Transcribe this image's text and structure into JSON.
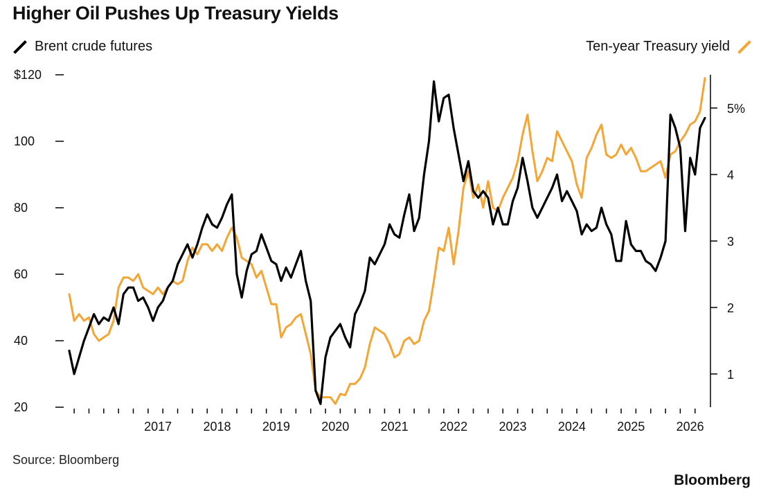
{
  "page": {
    "title": "Higher Oil Pushes Up Treasury Yields",
    "source": "Source: Bloomberg",
    "brand": "Bloomberg"
  },
  "chart_data": {
    "type": "line",
    "title": "Higher Oil Pushes Up Treasury Yields",
    "grid": false,
    "legend_placement": "top",
    "x_ticks": [
      "2017",
      "2018",
      "2019",
      "2020",
      "2021",
      "2022",
      "2023",
      "2024",
      "2025",
      "2026"
    ],
    "x_range": [
      "2016-01",
      "2026-10"
    ],
    "y_left": {
      "ticks": [
        "$120",
        "100",
        "80",
        "60",
        "40",
        "20"
      ],
      "tick_values": [
        120,
        100,
        80,
        60,
        40,
        20
      ],
      "range": [
        20,
        120
      ]
    },
    "y_right": {
      "ticks": [
        "5%",
        "4",
        "3",
        "2",
        "1"
      ],
      "tick_values": [
        5,
        4,
        3,
        2,
        1
      ],
      "range": [
        0.5,
        5.5
      ]
    },
    "series": [
      {
        "name": "Brent crude futures",
        "axis": "left",
        "color": "#000000",
        "points": [
          [
            "2016-01",
            37
          ],
          [
            "2016-02",
            30
          ],
          [
            "2016-03",
            35
          ],
          [
            "2016-04",
            40
          ],
          [
            "2016-05",
            44
          ],
          [
            "2016-06",
            48
          ],
          [
            "2016-07",
            45
          ],
          [
            "2016-08",
            47
          ],
          [
            "2016-09",
            46
          ],
          [
            "2016-10",
            50
          ],
          [
            "2016-11",
            45
          ],
          [
            "2016-12",
            54
          ],
          [
            "2017-01",
            56
          ],
          [
            "2017-02",
            56
          ],
          [
            "2017-03",
            52
          ],
          [
            "2017-04",
            53
          ],
          [
            "2017-05",
            50
          ],
          [
            "2017-06",
            46
          ],
          [
            "2017-07",
            50
          ],
          [
            "2017-08",
            52
          ],
          [
            "2017-09",
            56
          ],
          [
            "2017-10",
            58
          ],
          [
            "2017-11",
            63
          ],
          [
            "2017-12",
            66
          ],
          [
            "2018-01",
            69
          ],
          [
            "2018-02",
            65
          ],
          [
            "2018-03",
            69
          ],
          [
            "2018-04",
            74
          ],
          [
            "2018-05",
            78
          ],
          [
            "2018-06",
            75
          ],
          [
            "2018-07",
            74
          ],
          [
            "2018-08",
            77
          ],
          [
            "2018-09",
            81
          ],
          [
            "2018-10",
            84
          ],
          [
            "2018-11",
            60
          ],
          [
            "2018-12",
            53
          ],
          [
            "2019-01",
            61
          ],
          [
            "2019-02",
            66
          ],
          [
            "2019-03",
            67
          ],
          [
            "2019-04",
            72
          ],
          [
            "2019-05",
            68
          ],
          [
            "2019-06",
            64
          ],
          [
            "2019-07",
            63
          ],
          [
            "2019-08",
            58
          ],
          [
            "2019-09",
            62
          ],
          [
            "2019-10",
            59
          ],
          [
            "2019-11",
            63
          ],
          [
            "2019-12",
            67
          ],
          [
            "2020-01",
            58
          ],
          [
            "2020-02",
            52
          ],
          [
            "2020-03",
            25
          ],
          [
            "2020-04",
            21
          ],
          [
            "2020-05",
            35
          ],
          [
            "2020-06",
            41
          ],
          [
            "2020-07",
            43
          ],
          [
            "2020-08",
            45
          ],
          [
            "2020-09",
            41
          ],
          [
            "2020-10",
            38
          ],
          [
            "2020-11",
            48
          ],
          [
            "2020-12",
            51
          ],
          [
            "2021-01",
            55
          ],
          [
            "2021-02",
            65
          ],
          [
            "2021-03",
            63
          ],
          [
            "2021-04",
            66
          ],
          [
            "2021-05",
            69
          ],
          [
            "2021-06",
            75
          ],
          [
            "2021-07",
            72
          ],
          [
            "2021-08",
            71
          ],
          [
            "2021-09",
            78
          ],
          [
            "2021-10",
            84
          ],
          [
            "2021-11",
            73
          ],
          [
            "2021-12",
            77
          ],
          [
            "2022-01",
            90
          ],
          [
            "2022-02",
            100
          ],
          [
            "2022-03",
            118
          ],
          [
            "2022-04",
            106
          ],
          [
            "2022-05",
            113
          ],
          [
            "2022-06",
            114
          ],
          [
            "2022-07",
            104
          ],
          [
            "2022-08",
            96
          ],
          [
            "2022-09",
            88
          ],
          [
            "2022-10",
            94
          ],
          [
            "2022-11",
            85
          ],
          [
            "2022-12",
            83
          ],
          [
            "2023-01",
            85
          ],
          [
            "2023-02",
            83
          ],
          [
            "2023-03",
            75
          ],
          [
            "2023-04",
            80
          ],
          [
            "2023-05",
            75
          ],
          [
            "2023-06",
            75
          ],
          [
            "2023-07",
            82
          ],
          [
            "2023-08",
            86
          ],
          [
            "2023-09",
            95
          ],
          [
            "2023-10",
            88
          ],
          [
            "2023-11",
            80
          ],
          [
            "2023-12",
            77
          ],
          [
            "2024-01",
            80
          ],
          [
            "2024-02",
            83
          ],
          [
            "2024-03",
            86
          ],
          [
            "2024-04",
            90
          ],
          [
            "2024-05",
            82
          ],
          [
            "2024-06",
            85
          ],
          [
            "2024-07",
            82
          ],
          [
            "2024-08",
            79
          ],
          [
            "2024-09",
            72
          ],
          [
            "2024-10",
            75
          ],
          [
            "2024-11",
            73
          ],
          [
            "2024-12",
            74
          ],
          [
            "2025-01",
            80
          ],
          [
            "2025-02",
            75
          ],
          [
            "2025-03",
            72
          ],
          [
            "2025-04",
            64
          ],
          [
            "2025-05",
            64
          ],
          [
            "2025-06",
            76
          ],
          [
            "2025-07",
            69
          ],
          [
            "2025-08",
            67
          ],
          [
            "2025-09",
            67
          ],
          [
            "2025-10",
            64
          ],
          [
            "2025-11",
            63
          ],
          [
            "2025-12",
            61
          ],
          [
            "2026-01",
            65
          ],
          [
            "2026-02",
            70
          ],
          [
            "2026-03",
            108
          ],
          [
            "2026-04",
            104
          ],
          [
            "2026-05",
            98
          ],
          [
            "2026-06",
            73
          ],
          [
            "2026-07",
            95
          ],
          [
            "2026-08",
            90
          ],
          [
            "2026-09",
            104
          ],
          [
            "2026-10",
            107
          ]
        ]
      },
      {
        "name": "Ten-year Treasury yield",
        "axis": "right",
        "color": "#f5a533",
        "points": [
          [
            "2016-01",
            2.2
          ],
          [
            "2016-02",
            1.8
          ],
          [
            "2016-03",
            1.9
          ],
          [
            "2016-04",
            1.8
          ],
          [
            "2016-05",
            1.85
          ],
          [
            "2016-06",
            1.6
          ],
          [
            "2016-07",
            1.5
          ],
          [
            "2016-08",
            1.55
          ],
          [
            "2016-09",
            1.6
          ],
          [
            "2016-10",
            1.8
          ],
          [
            "2016-11",
            2.3
          ],
          [
            "2016-12",
            2.45
          ],
          [
            "2017-01",
            2.45
          ],
          [
            "2017-02",
            2.4
          ],
          [
            "2017-03",
            2.5
          ],
          [
            "2017-04",
            2.3
          ],
          [
            "2017-05",
            2.25
          ],
          [
            "2017-06",
            2.2
          ],
          [
            "2017-07",
            2.3
          ],
          [
            "2017-08",
            2.2
          ],
          [
            "2017-09",
            2.3
          ],
          [
            "2017-10",
            2.4
          ],
          [
            "2017-11",
            2.35
          ],
          [
            "2017-12",
            2.4
          ],
          [
            "2018-01",
            2.7
          ],
          [
            "2018-02",
            2.9
          ],
          [
            "2018-03",
            2.8
          ],
          [
            "2018-04",
            2.95
          ],
          [
            "2018-05",
            2.95
          ],
          [
            "2018-06",
            2.85
          ],
          [
            "2018-07",
            2.95
          ],
          [
            "2018-08",
            2.85
          ],
          [
            "2018-09",
            3.05
          ],
          [
            "2018-10",
            3.2
          ],
          [
            "2018-11",
            3.05
          ],
          [
            "2018-12",
            2.75
          ],
          [
            "2019-01",
            2.7
          ],
          [
            "2019-02",
            2.65
          ],
          [
            "2019-03",
            2.45
          ],
          [
            "2019-04",
            2.55
          ],
          [
            "2019-05",
            2.3
          ],
          [
            "2019-06",
            2.05
          ],
          [
            "2019-07",
            2.05
          ],
          [
            "2019-08",
            1.55
          ],
          [
            "2019-09",
            1.7
          ],
          [
            "2019-10",
            1.75
          ],
          [
            "2019-11",
            1.85
          ],
          [
            "2019-12",
            1.9
          ],
          [
            "2020-01",
            1.6
          ],
          [
            "2020-02",
            1.3
          ],
          [
            "2020-03",
            0.75
          ],
          [
            "2020-04",
            0.65
          ],
          [
            "2020-05",
            0.65
          ],
          [
            "2020-06",
            0.65
          ],
          [
            "2020-07",
            0.55
          ],
          [
            "2020-08",
            0.7
          ],
          [
            "2020-09",
            0.68
          ],
          [
            "2020-10",
            0.85
          ],
          [
            "2020-11",
            0.85
          ],
          [
            "2020-12",
            0.93
          ],
          [
            "2021-01",
            1.1
          ],
          [
            "2021-02",
            1.45
          ],
          [
            "2021-03",
            1.7
          ],
          [
            "2021-04",
            1.65
          ],
          [
            "2021-05",
            1.6
          ],
          [
            "2021-06",
            1.45
          ],
          [
            "2021-07",
            1.25
          ],
          [
            "2021-08",
            1.3
          ],
          [
            "2021-09",
            1.5
          ],
          [
            "2021-10",
            1.55
          ],
          [
            "2021-11",
            1.45
          ],
          [
            "2021-12",
            1.5
          ],
          [
            "2022-01",
            1.8
          ],
          [
            "2022-02",
            1.95
          ],
          [
            "2022-03",
            2.4
          ],
          [
            "2022-04",
            2.9
          ],
          [
            "2022-05",
            2.85
          ],
          [
            "2022-06",
            3.2
          ],
          [
            "2022-07",
            2.65
          ],
          [
            "2022-08",
            3.15
          ],
          [
            "2022-09",
            3.8
          ],
          [
            "2022-10",
            4.05
          ],
          [
            "2022-11",
            3.65
          ],
          [
            "2022-12",
            3.85
          ],
          [
            "2023-01",
            3.5
          ],
          [
            "2023-02",
            3.9
          ],
          [
            "2023-03",
            3.5
          ],
          [
            "2023-04",
            3.45
          ],
          [
            "2023-05",
            3.65
          ],
          [
            "2023-06",
            3.8
          ],
          [
            "2023-07",
            3.95
          ],
          [
            "2023-08",
            4.2
          ],
          [
            "2023-09",
            4.6
          ],
          [
            "2023-10",
            4.9
          ],
          [
            "2023-11",
            4.35
          ],
          [
            "2023-12",
            3.9
          ],
          [
            "2024-01",
            4.05
          ],
          [
            "2024-02",
            4.25
          ],
          [
            "2024-03",
            4.2
          ],
          [
            "2024-04",
            4.65
          ],
          [
            "2024-05",
            4.5
          ],
          [
            "2024-06",
            4.35
          ],
          [
            "2024-07",
            4.2
          ],
          [
            "2024-08",
            3.85
          ],
          [
            "2024-09",
            3.65
          ],
          [
            "2024-10",
            4.25
          ],
          [
            "2024-11",
            4.4
          ],
          [
            "2024-12",
            4.6
          ],
          [
            "2025-01",
            4.75
          ],
          [
            "2025-02",
            4.3
          ],
          [
            "2025-03",
            4.25
          ],
          [
            "2025-04",
            4.3
          ],
          [
            "2025-05",
            4.45
          ],
          [
            "2025-06",
            4.3
          ],
          [
            "2025-07",
            4.4
          ],
          [
            "2025-08",
            4.25
          ],
          [
            "2025-09",
            4.05
          ],
          [
            "2025-10",
            4.05
          ],
          [
            "2025-11",
            4.1
          ],
          [
            "2025-12",
            4.15
          ],
          [
            "2026-01",
            4.2
          ],
          [
            "2026-02",
            3.95
          ],
          [
            "2026-03",
            4.3
          ],
          [
            "2026-04",
            4.35
          ],
          [
            "2026-05",
            4.5
          ],
          [
            "2026-06",
            4.6
          ],
          [
            "2026-07",
            4.75
          ],
          [
            "2026-08",
            4.8
          ],
          [
            "2026-09",
            4.95
          ],
          [
            "2026-10",
            5.45
          ]
        ]
      }
    ]
  }
}
